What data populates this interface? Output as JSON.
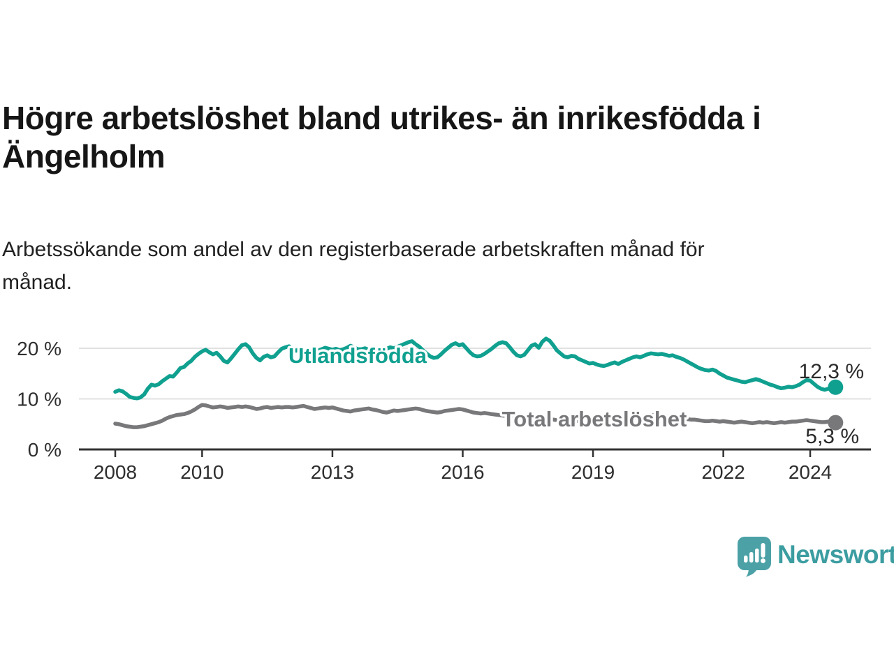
{
  "header": {
    "title": "Högre arbetslöshet bland utrikes- än inrikesfödda i Ängelholm",
    "subtitle": "Arbetssökande som andel av den registerbaserade arbetskraften månad för månad."
  },
  "chart_data": {
    "type": "line",
    "unit": "%",
    "grid": "horizontal",
    "start_year": 2008,
    "points_per_year": 12,
    "ylim": [
      0,
      23.5
    ],
    "x_ticks": [
      2008,
      2010,
      2013,
      2016,
      2019,
      2022,
      2024
    ],
    "y_ticks": [
      {
        "value": 20,
        "label": "20 %"
      },
      {
        "value": 10,
        "label": "10 %"
      },
      {
        "value": 0,
        "label": "0 %"
      }
    ],
    "series": [
      {
        "id": "utlandsfodda",
        "name": "Utlandsfödda",
        "color": "#10A090",
        "end_label": "12,3 %",
        "last_value": 12.3,
        "values": [
          11.4,
          11.7,
          11.5,
          11.0,
          10.4,
          10.2,
          10.1,
          10.3,
          10.9,
          12.0,
          12.8,
          12.6,
          12.9,
          13.5,
          14.0,
          14.5,
          14.4,
          15.2,
          16.1,
          16.3,
          17.0,
          17.5,
          18.3,
          18.9,
          19.4,
          19.7,
          19.2,
          18.8,
          19.1,
          18.4,
          17.5,
          17.2,
          18.0,
          18.9,
          19.8,
          20.6,
          20.8,
          20.2,
          19.0,
          18.1,
          17.6,
          18.3,
          18.6,
          18.2,
          18.4,
          19.2,
          19.9,
          20.2,
          20.4,
          19.8,
          19.5,
          19.9,
          19.6,
          19.3,
          19.4,
          19.7,
          19.5,
          19.8,
          20.1,
          19.9,
          19.7,
          19.9,
          19.6,
          19.8,
          20.1,
          20.5,
          20.2,
          19.8,
          19.8,
          20.0,
          19.7,
          19.9,
          20.1,
          19.8,
          19.6,
          19.9,
          20.2,
          20.0,
          20.3,
          20.6,
          20.9,
          21.2,
          21.4,
          20.8,
          20.3,
          19.6,
          19.0,
          18.4,
          18.1,
          18.2,
          18.8,
          19.5,
          20.1,
          20.7,
          21.0,
          20.6,
          20.8,
          20.0,
          19.2,
          18.6,
          18.4,
          18.5,
          18.9,
          19.4,
          19.9,
          20.5,
          21.0,
          21.2,
          21.0,
          20.2,
          19.3,
          18.6,
          18.4,
          18.7,
          19.6,
          20.5,
          20.8,
          20.1,
          21.3,
          21.9,
          21.5,
          20.6,
          19.6,
          19.0,
          18.4,
          18.2,
          18.5,
          18.4,
          17.9,
          17.6,
          17.3,
          17.0,
          17.1,
          16.8,
          16.6,
          16.5,
          16.7,
          17.0,
          17.2,
          16.9,
          17.3,
          17.6,
          17.9,
          18.2,
          18.4,
          18.2,
          18.5,
          18.8,
          19.0,
          18.9,
          18.8,
          18.9,
          18.7,
          18.5,
          18.6,
          18.3,
          18.1,
          17.8,
          17.4,
          17.0,
          16.6,
          16.2,
          15.9,
          15.7,
          15.6,
          15.8,
          15.5,
          15.0,
          14.6,
          14.2,
          14.0,
          13.8,
          13.6,
          13.4,
          13.3,
          13.5,
          13.7,
          13.9,
          13.7,
          13.4,
          13.1,
          12.8,
          12.6,
          12.3,
          12.1,
          12.2,
          12.4,
          12.3,
          12.5,
          12.8,
          13.3,
          13.7,
          13.6,
          13.0,
          12.4,
          12.0,
          11.8,
          12.0,
          12.2,
          12.3
        ]
      },
      {
        "id": "total",
        "name": "Total arbetslöshet",
        "color": "#78787B",
        "end_label": "5,3 %",
        "last_value": 5.3,
        "values": [
          5.1,
          5.0,
          4.8,
          4.6,
          4.5,
          4.4,
          4.4,
          4.5,
          4.6,
          4.8,
          5.0,
          5.2,
          5.4,
          5.7,
          6.1,
          6.4,
          6.6,
          6.8,
          6.9,
          7.0,
          7.2,
          7.5,
          7.9,
          8.4,
          8.8,
          8.7,
          8.5,
          8.3,
          8.4,
          8.5,
          8.4,
          8.2,
          8.3,
          8.4,
          8.5,
          8.4,
          8.5,
          8.4,
          8.2,
          8.0,
          8.1,
          8.3,
          8.4,
          8.2,
          8.3,
          8.4,
          8.3,
          8.4,
          8.4,
          8.3,
          8.4,
          8.5,
          8.6,
          8.4,
          8.2,
          8.0,
          8.1,
          8.2,
          8.3,
          8.2,
          8.3,
          8.1,
          7.9,
          7.7,
          7.6,
          7.5,
          7.7,
          7.8,
          7.9,
          8.0,
          8.1,
          7.9,
          7.8,
          7.6,
          7.4,
          7.3,
          7.5,
          7.7,
          7.6,
          7.7,
          7.8,
          7.9,
          8.0,
          8.1,
          8.0,
          7.8,
          7.6,
          7.5,
          7.4,
          7.3,
          7.4,
          7.6,
          7.7,
          7.8,
          7.9,
          8.0,
          7.9,
          7.7,
          7.5,
          7.3,
          7.2,
          7.1,
          7.2,
          7.1,
          7.0,
          6.9,
          6.8,
          6.7,
          6.6,
          6.5,
          6.4,
          6.3,
          6.2,
          6.2,
          6.3,
          6.2,
          6.1,
          6.1,
          6.0,
          6.0,
          6.0,
          5.9,
          5.8,
          5.8,
          5.7,
          5.7,
          5.8,
          5.7,
          5.6,
          5.6,
          5.7,
          5.7,
          5.7,
          5.6,
          5.6,
          5.5,
          5.6,
          5.7,
          5.8,
          5.7,
          5.8,
          5.9,
          6.0,
          6.1,
          6.2,
          6.3,
          6.5,
          6.7,
          6.8,
          6.8,
          6.7,
          6.6,
          6.5,
          6.4,
          6.3,
          6.3,
          6.2,
          6.1,
          6.0,
          5.9,
          5.9,
          5.8,
          5.7,
          5.6,
          5.6,
          5.7,
          5.6,
          5.5,
          5.6,
          5.5,
          5.4,
          5.3,
          5.4,
          5.5,
          5.4,
          5.3,
          5.2,
          5.3,
          5.4,
          5.3,
          5.4,
          5.3,
          5.2,
          5.3,
          5.4,
          5.3,
          5.4,
          5.5,
          5.5,
          5.6,
          5.7,
          5.8,
          5.7,
          5.6,
          5.5,
          5.4,
          5.4,
          5.5,
          5.4,
          5.3
        ]
      }
    ]
  },
  "footer": {
    "brand": "Newsworthy",
    "brand_color": "#3C9DA1",
    "icon_color": "#4BA1A6",
    "icon": "newsworthy-logo-icon"
  }
}
